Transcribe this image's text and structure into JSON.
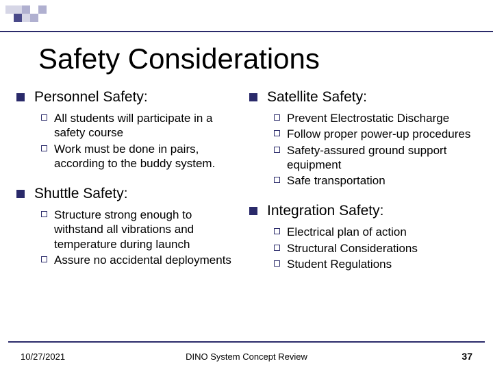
{
  "title": "Safety Considerations",
  "decoration": {
    "colors": {
      "light": "#d6d6e6",
      "mid": "#b0b0d0",
      "dark": "#4a4a8a"
    }
  },
  "columns": [
    {
      "sections": [
        {
          "title": "Personnel Safety:",
          "items": [
            "All students will participate in a safety course",
            "Work must be done in pairs, according to the buddy system."
          ]
        },
        {
          "title": "Shuttle Safety:",
          "items": [
            "Structure strong enough to withstand all vibrations and temperature during launch",
            "Assure no accidental deployments"
          ]
        }
      ]
    },
    {
      "sections": [
        {
          "title": "Satellite Safety:",
          "items": [
            "Prevent Electrostatic Discharge",
            "Follow proper power-up procedures",
            "Safety-assured ground support equipment",
            "Safe transportation"
          ]
        },
        {
          "title": "Integration Safety:",
          "items": [
            "Electrical plan of action",
            "Structural Considerations",
            "Student Regulations"
          ]
        }
      ]
    }
  ],
  "footer": {
    "date": "10/27/2021",
    "center": "DINO System Concept Review",
    "page": "37"
  },
  "styling": {
    "title_fontsize": 42,
    "section_fontsize": 21,
    "item_fontsize": 17,
    "footer_fontsize": 13,
    "bullet_color": "#2a2a6a",
    "rule_color": "#2a2a6a",
    "text_color": "#000000",
    "background_color": "#ffffff"
  }
}
